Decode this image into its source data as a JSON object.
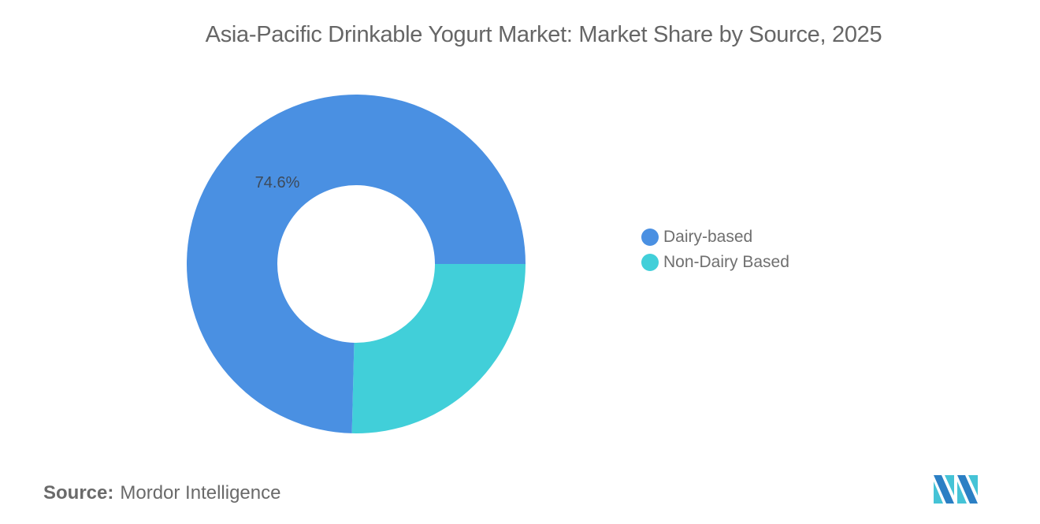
{
  "header": {
    "title": "Asia-Pacific Drinkable Yogurt Market: Market Share by Source, 2025"
  },
  "legend": {
    "items": [
      {
        "label": "Dairy-based",
        "color": "#4a90e2"
      },
      {
        "label": "Non-Dairy Based",
        "color": "#41cfd9"
      }
    ]
  },
  "labels": {
    "dairy_pct": "74.6%"
  },
  "footer": {
    "source_label": "Source:",
    "source_value": "Mordor Intelligence",
    "logo": "mordor-intelligence-logo"
  },
  "chart_data": {
    "type": "pie",
    "subtype": "donut",
    "title": "Asia-Pacific Drinkable Yogurt Market: Market Share by Source, 2025",
    "categories": [
      "Dairy-based",
      "Non-Dairy Based"
    ],
    "values": [
      74.6,
      25.4
    ],
    "unit": "%",
    "colors": [
      "#4a90e2",
      "#41cfd9"
    ],
    "data_labels": [
      "74.6%",
      ""
    ],
    "legend_position": "right",
    "source": "Mordor Intelligence"
  }
}
